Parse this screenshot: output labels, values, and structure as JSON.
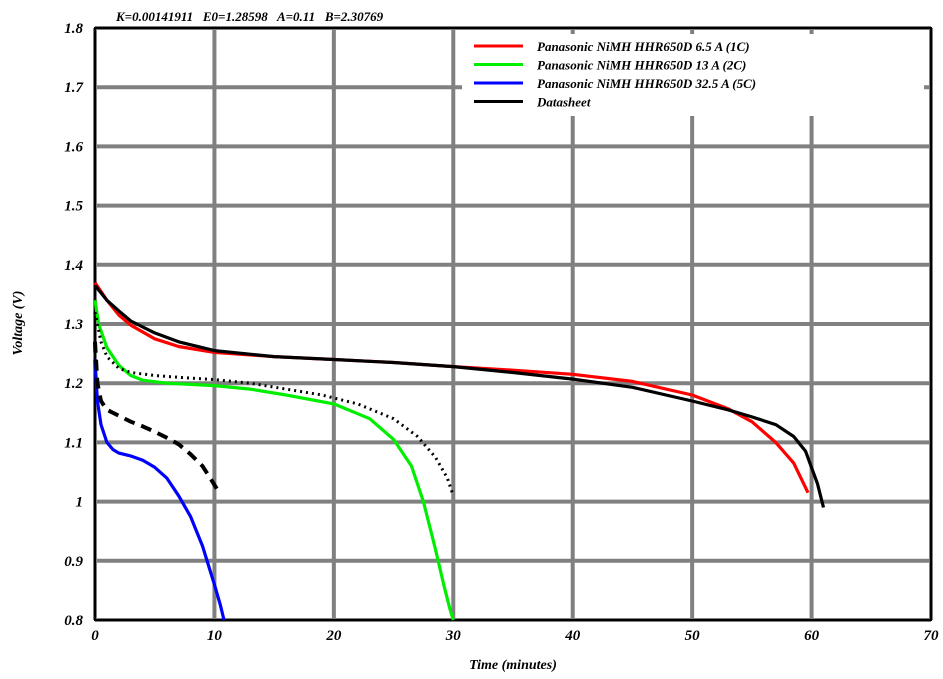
{
  "chart_data": {
    "type": "line",
    "header": "K=0.00141911   E0=1.28598   A=0.11   B=2.30769",
    "xlabel": "Time (minutes)",
    "ylabel": "Voltage (V)",
    "xlim": [
      0,
      70
    ],
    "ylim": [
      0.8,
      1.8
    ],
    "x_ticks": [
      "0",
      "10",
      "20",
      "30",
      "40",
      "50",
      "60",
      "70"
    ],
    "y_ticks": [
      "0.8",
      "0.9",
      "1",
      "1.1",
      "1.2",
      "1.3",
      "1.4",
      "1.5",
      "1.6",
      "1.7",
      "1.8"
    ],
    "grid": true,
    "legend_position": "top-right",
    "series": [
      {
        "name": "Panasonic NiMH HHR650D 6.5 A (1C)",
        "color": "#ff0000",
        "style": "solid",
        "x": [
          0,
          0.5,
          1,
          2,
          3,
          5,
          7,
          10,
          15,
          20,
          25,
          30,
          35,
          40,
          45,
          50,
          53,
          55,
          57,
          58.5,
          59.7
        ],
        "y": [
          1.37,
          1.355,
          1.34,
          1.315,
          1.298,
          1.275,
          1.262,
          1.252,
          1.245,
          1.24,
          1.235,
          1.228,
          1.222,
          1.215,
          1.203,
          1.18,
          1.157,
          1.135,
          1.1,
          1.065,
          1.015
        ]
      },
      {
        "name": "Panasonic NiMH HHR650D 13 A (2C)",
        "color": "#00ee00",
        "style": "solid",
        "x": [
          0,
          0.3,
          1,
          2,
          3,
          4,
          6,
          8,
          10,
          13,
          16,
          20,
          23,
          25,
          26.5,
          27.5,
          28.5,
          29.2,
          29.7,
          30
        ],
        "y": [
          1.34,
          1.3,
          1.26,
          1.23,
          1.213,
          1.205,
          1.2,
          1.198,
          1.196,
          1.19,
          1.18,
          1.165,
          1.14,
          1.105,
          1.06,
          1.0,
          0.92,
          0.86,
          0.82,
          0.8
        ]
      },
      {
        "name": "Panasonic NiMH HHR650D 32.5 A (5C)",
        "color": "#0000ff",
        "style": "solid",
        "x": [
          0,
          0.2,
          0.5,
          1,
          1.5,
          2,
          3,
          4,
          5,
          6,
          7,
          8,
          9,
          10,
          10.5,
          10.8
        ],
        "y": [
          1.24,
          1.17,
          1.13,
          1.1,
          1.088,
          1.082,
          1.077,
          1.07,
          1.058,
          1.04,
          1.01,
          0.975,
          0.925,
          0.86,
          0.825,
          0.8
        ]
      },
      {
        "name": "Datasheet",
        "color": "#000000",
        "style": "solid",
        "x": [
          0,
          1,
          2,
          3,
          5,
          7,
          10,
          15,
          20,
          25,
          30,
          35,
          40,
          45,
          50,
          53,
          55,
          57,
          58.5,
          59.5,
          60.5,
          61
        ],
        "y": [
          1.365,
          1.34,
          1.322,
          1.305,
          1.285,
          1.27,
          1.255,
          1.245,
          1.24,
          1.235,
          1.228,
          1.218,
          1.207,
          1.193,
          1.17,
          1.155,
          1.143,
          1.13,
          1.11,
          1.085,
          1.03,
          0.99
        ]
      },
      {
        "color": "#000000",
        "style": "dotted",
        "x": [
          0,
          0.5,
          1,
          2,
          3,
          5,
          7,
          10,
          13,
          16,
          19,
          22,
          25,
          27,
          28.5,
          29.5,
          30
        ],
        "y": [
          1.32,
          1.27,
          1.245,
          1.225,
          1.218,
          1.213,
          1.21,
          1.206,
          1.2,
          1.19,
          1.18,
          1.165,
          1.14,
          1.11,
          1.075,
          1.04,
          1.01
        ]
      },
      {
        "color": "#000000",
        "style": "dashed",
        "x": [
          0,
          0.2,
          0.5,
          1,
          2,
          3,
          4,
          5,
          6,
          7,
          8,
          9,
          9.8,
          10.4
        ],
        "y": [
          1.27,
          1.2,
          1.17,
          1.155,
          1.145,
          1.135,
          1.127,
          1.118,
          1.108,
          1.097,
          1.08,
          1.06,
          1.035,
          1.015
        ]
      }
    ]
  }
}
